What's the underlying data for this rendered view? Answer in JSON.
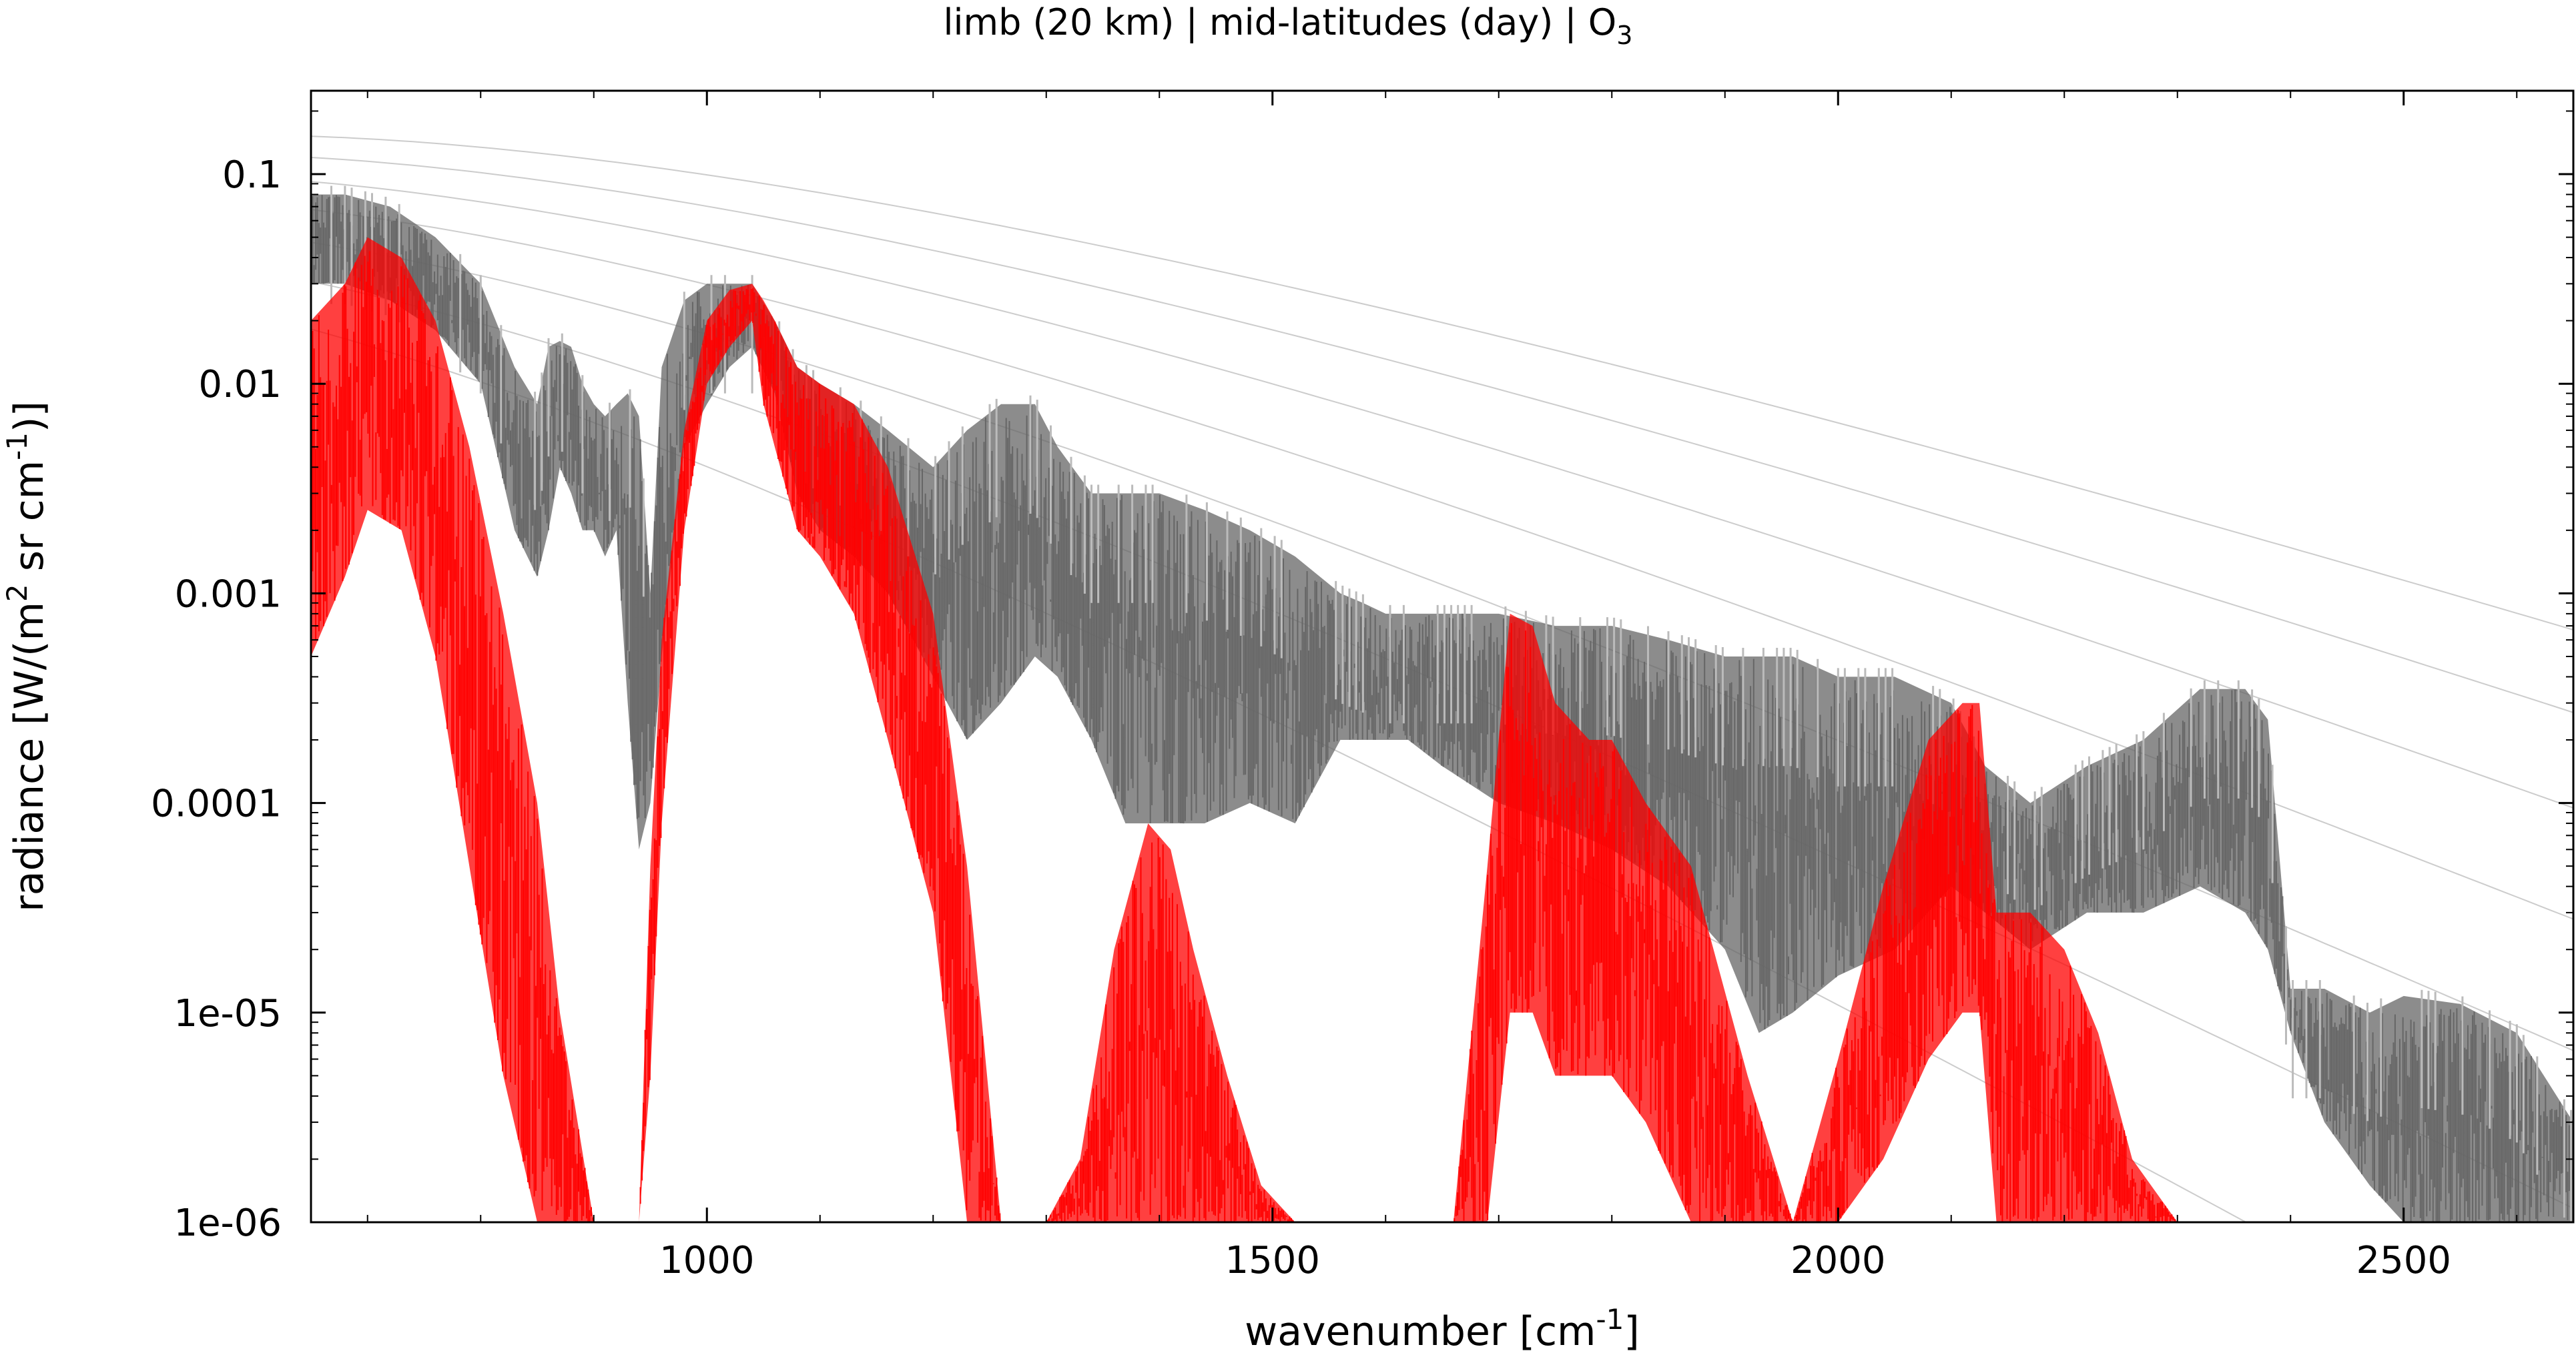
{
  "chart_data": {
    "type": "line",
    "title": "limb (20 km) | mid-latitudes (day) | O",
    "title_subscript": "3",
    "xlabel": "wavenumber [cm",
    "xlabel_sup": "-1",
    "xlabel_end": "]",
    "ylabel_a": "radiance [W/(m",
    "ylabel_sup1": "2",
    "ylabel_b": " sr cm",
    "ylabel_sup2": "-1",
    "ylabel_c": ")]",
    "x_range": [
      650,
      2650
    ],
    "y_range": [
      1e-06,
      0.25
    ],
    "y_scale": "log",
    "x_ticks": [
      1000,
      1500,
      2000,
      2500
    ],
    "x_tick_labels": [
      "1000",
      "1500",
      "2000",
      "2500"
    ],
    "y_ticks": [
      1e-06,
      1e-05,
      0.0001,
      0.001,
      0.01,
      0.1
    ],
    "y_tick_labels": [
      "1e-06",
      "1e-05",
      "0.0001",
      "0.001",
      "0.01",
      "0.1"
    ],
    "grid": false,
    "legend": "none",
    "colors": {
      "total_spectrum": "#666666",
      "total_spectrum_light": "#bbbbbb",
      "o3_spectrum": "#ff0000",
      "planck_curves": "#cccccc"
    },
    "series": [
      {
        "envelope_x": [
          650,
          680,
          720,
          760,
          800,
          830,
          850,
          860,
          870,
          880,
          890,
          900,
          910,
          920,
          930,
          940,
          950,
          960,
          980,
          1000,
          1020,
          1040,
          1060,
          1080,
          1100,
          1130,
          1160,
          1200,
          1230,
          1260,
          1290,
          1310,
          1340,
          1370,
          1400,
          1440,
          1480,
          1520,
          1560,
          1580,
          1600,
          1620,
          1650,
          1700,
          1750,
          1800,
          1850,
          1900,
          1930,
          1960,
          2000,
          2050,
          2100,
          2130,
          2170,
          2220,
          2270,
          2320,
          2360,
          2380,
          2400,
          2430,
          2470,
          2500,
          2550,
          2600,
          2650
        ],
        "envelope_top": [
          0.08,
          0.08,
          0.07,
          0.05,
          0.03,
          0.012,
          0.008,
          0.015,
          0.016,
          0.015,
          0.01,
          0.008,
          0.007,
          0.008,
          0.009,
          0.007,
          0.001,
          0.012,
          0.025,
          0.03,
          0.03,
          0.03,
          0.02,
          0.012,
          0.01,
          0.008,
          0.006,
          0.004,
          0.006,
          0.008,
          0.008,
          0.005,
          0.003,
          0.003,
          0.003,
          0.0025,
          0.002,
          0.0015,
          0.001,
          0.0009,
          0.0008,
          0.0008,
          0.0008,
          0.0008,
          0.0007,
          0.0007,
          0.0006,
          0.0005,
          0.0005,
          0.0005,
          0.0004,
          0.0004,
          0.0003,
          0.00015,
          0.0001,
          0.00015,
          0.0002,
          0.00035,
          0.00035,
          0.00025,
          1.3e-05,
          1.3e-05,
          1e-05,
          1.2e-05,
          1.1e-05,
          8e-06,
          3e-06
        ],
        "envelope_bottom": [
          0.03,
          0.03,
          0.025,
          0.018,
          0.01,
          0.002,
          0.0012,
          0.002,
          0.004,
          0.003,
          0.002,
          0.002,
          0.0015,
          0.002,
          0.0003,
          6e-05,
          0.0001,
          0.0005,
          0.005,
          0.008,
          0.012,
          0.015,
          0.009,
          0.003,
          0.002,
          0.0015,
          0.001,
          0.0004,
          0.0002,
          0.0003,
          0.0005,
          0.0004,
          0.0002,
          8e-05,
          8e-05,
          8e-05,
          0.0001,
          8e-05,
          0.0002,
          0.0002,
          0.0002,
          0.0002,
          0.00015,
          0.0001,
          8e-05,
          6e-05,
          4e-05,
          2e-05,
          8e-06,
          1e-05,
          1.5e-05,
          2e-05,
          4e-05,
          3e-05,
          2e-05,
          3e-05,
          3e-05,
          4e-05,
          3e-05,
          2e-05,
          8e-06,
          3e-06,
          1.5e-06,
          1e-06,
          1e-06,
          1e-06,
          1e-06
        ]
      },
      {
        "envelope_x": [
          650,
          680,
          700,
          730,
          760,
          790,
          820,
          850,
          870,
          900,
          920,
          930,
          940,
          950,
          960,
          980,
          1000,
          1020,
          1040,
          1050,
          1060,
          1080,
          1100,
          1130,
          1160,
          1200,
          1230,
          1260,
          1300,
          1330,
          1360,
          1390,
          1410,
          1430,
          1460,
          1490,
          1520,
          1580,
          1640,
          1660,
          1690,
          1710,
          1730,
          1750,
          1780,
          1800,
          1830,
          1870,
          1920,
          1960,
          2000,
          2040,
          2080,
          2110,
          2125,
          2140,
          2170,
          2200,
          2230,
          2260,
          2300,
          2350,
          2650
        ],
        "envelope_top": [
          0.02,
          0.03,
          0.05,
          0.04,
          0.02,
          0.005,
          0.0008,
          0.0001,
          1e-05,
          1e-06,
          1e-06,
          1e-06,
          1e-06,
          5e-05,
          0.0006,
          0.006,
          0.02,
          0.028,
          0.03,
          0.025,
          0.02,
          0.012,
          0.01,
          0.008,
          0.004,
          0.0008,
          5e-05,
          1e-06,
          1e-06,
          2e-06,
          2e-05,
          8e-05,
          6e-05,
          2e-05,
          5e-06,
          1.5e-06,
          1e-06,
          1e-06,
          1e-06,
          1e-06,
          5e-05,
          0.0008,
          0.0007,
          0.0003,
          0.0002,
          0.0002,
          0.0001,
          5e-05,
          5e-06,
          1e-06,
          6e-06,
          4e-05,
          0.0002,
          0.0003,
          0.0003,
          3e-05,
          3e-05,
          2e-05,
          8e-06,
          2e-06,
          1e-06,
          1e-06,
          1e-06
        ],
        "envelope_bottom": [
          0.0005,
          0.0012,
          0.0025,
          0.002,
          0.0005,
          5e-05,
          5e-06,
          1e-06,
          1e-06,
          1e-06,
          1e-06,
          1e-06,
          1e-06,
          5e-06,
          8e-05,
          0.002,
          0.01,
          0.015,
          0.02,
          0.008,
          0.005,
          0.002,
          0.0015,
          0.0008,
          0.0002,
          3e-05,
          1e-06,
          1e-06,
          1e-06,
          1e-06,
          1e-06,
          1e-06,
          1e-06,
          1e-06,
          1e-06,
          1e-06,
          1e-06,
          1e-06,
          1e-06,
          1e-06,
          1e-06,
          1e-05,
          1e-05,
          5e-06,
          5e-06,
          5e-06,
          3e-06,
          1e-06,
          1e-06,
          1e-06,
          1e-06,
          2e-06,
          6e-06,
          1e-05,
          1e-05,
          1e-06,
          1e-06,
          1e-06,
          1e-06,
          1e-06,
          1e-06,
          1e-06,
          1e-06
        ]
      }
    ]
  }
}
